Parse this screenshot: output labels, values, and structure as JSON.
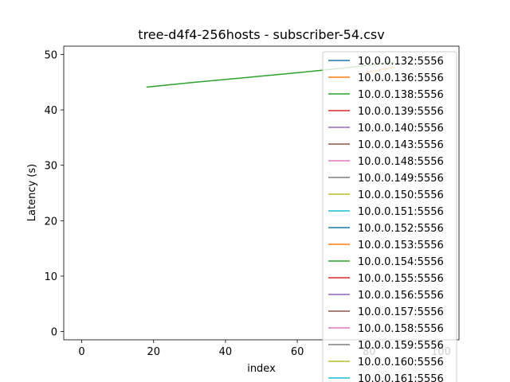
{
  "chart_data": {
    "type": "line",
    "title": "tree-d4f4-256hosts - subscriber-54.csv",
    "xlabel": "index",
    "ylabel": "Latency (s)",
    "xlim": [
      -5,
      105
    ],
    "ylim": [
      -1.5,
      51.5
    ],
    "xticks": [
      0,
      20,
      40,
      60,
      80,
      100
    ],
    "yticks": [
      0,
      10,
      20,
      30,
      40,
      50
    ],
    "grid": false,
    "legend_position": "upper right",
    "series": [
      {
        "name": "10.0.0.132:5556",
        "color": "#1f77b4",
        "points": []
      },
      {
        "name": "10.0.0.136:5556",
        "color": "#ff7f0e",
        "points": [
          [
            79,
            46.7
          ],
          [
            87,
            47.7
          ]
        ]
      },
      {
        "name": "10.0.0.138:5556",
        "color": "#2ca02c",
        "points": [
          [
            18,
            44.1
          ],
          [
            30,
            44.9
          ],
          [
            45,
            45.8
          ],
          [
            60,
            46.7
          ],
          [
            75,
            47.7
          ],
          [
            87,
            48.6
          ]
        ]
      },
      {
        "name": "10.0.0.139:5556",
        "color": "#d62728",
        "points": []
      },
      {
        "name": "10.0.0.140:5556",
        "color": "#9467bd",
        "points": []
      },
      {
        "name": "10.0.0.143:5556",
        "color": "#8c564b",
        "points": []
      },
      {
        "name": "10.0.0.148:5556",
        "color": "#e377c2",
        "points": []
      },
      {
        "name": "10.0.0.149:5556",
        "color": "#7f7f7f",
        "points": []
      },
      {
        "name": "10.0.0.150:5556",
        "color": "#bcbd22",
        "points": []
      },
      {
        "name": "10.0.0.151:5556",
        "color": "#17becf",
        "points": []
      },
      {
        "name": "10.0.0.152:5556",
        "color": "#1f77b4",
        "points": []
      },
      {
        "name": "10.0.0.153:5556",
        "color": "#ff7f0e",
        "points": []
      },
      {
        "name": "10.0.0.154:5556",
        "color": "#2ca02c",
        "points": []
      },
      {
        "name": "10.0.0.155:5556",
        "color": "#d62728",
        "points": []
      },
      {
        "name": "10.0.0.156:5556",
        "color": "#9467bd",
        "points": []
      },
      {
        "name": "10.0.0.157:5556",
        "color": "#8c564b",
        "points": []
      },
      {
        "name": "10.0.0.158:5556",
        "color": "#e377c2",
        "points": []
      },
      {
        "name": "10.0.0.159:5556",
        "color": "#7f7f7f",
        "points": []
      },
      {
        "name": "10.0.0.160:5556",
        "color": "#bcbd22",
        "points": []
      },
      {
        "name": "10.0.0.161:5556",
        "color": "#17becf",
        "points": []
      }
    ]
  }
}
